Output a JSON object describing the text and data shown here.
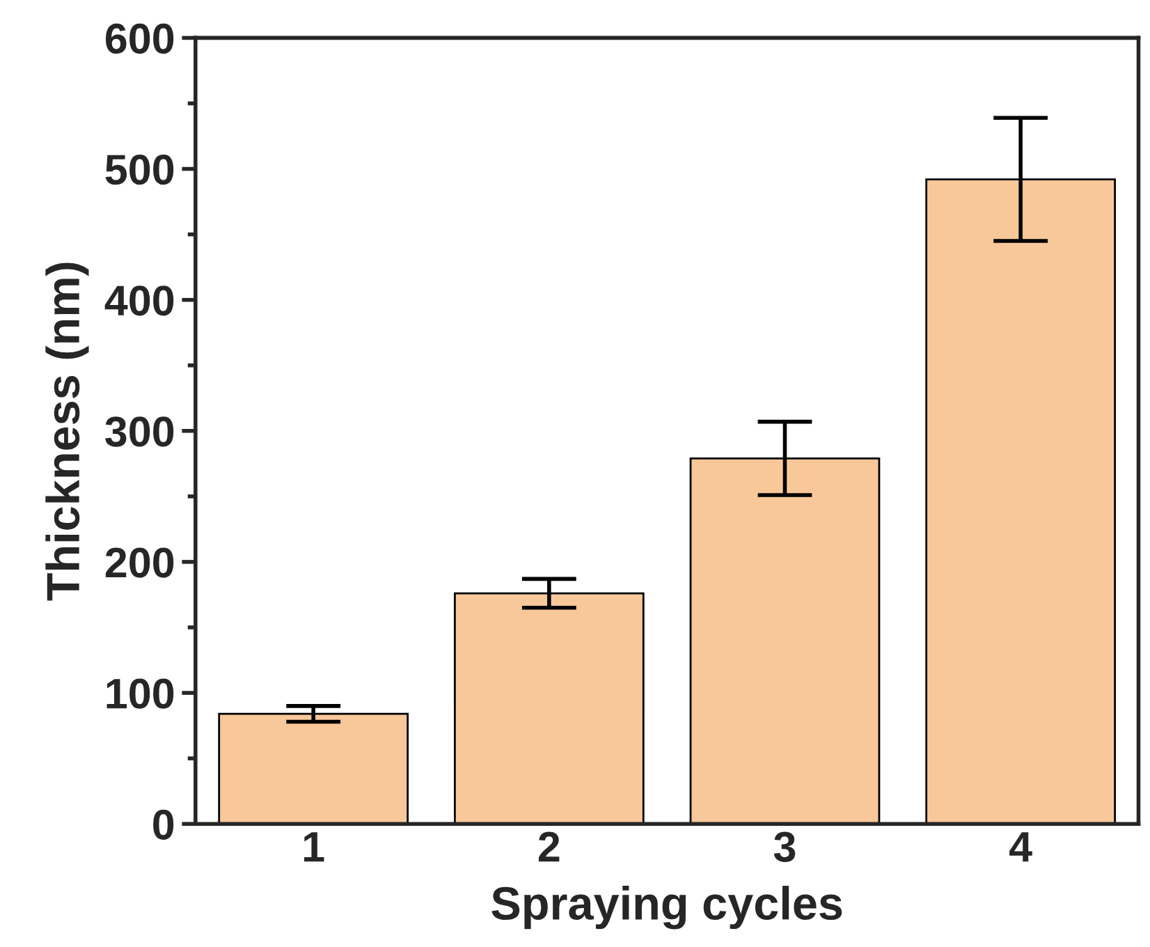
{
  "chart_data": {
    "type": "bar",
    "xlabel": "Spraying cycles",
    "ylabel": "Thickness (nm)",
    "categories": [
      "1",
      "2",
      "3",
      "4"
    ],
    "values": [
      84,
      176,
      279,
      492
    ],
    "errors": [
      6,
      11,
      28,
      47
    ],
    "color": "#f9c89a",
    "ylim": [
      0,
      600
    ],
    "yticks": [
      0,
      100,
      200,
      300,
      400,
      500,
      600
    ],
    "grid": false
  }
}
